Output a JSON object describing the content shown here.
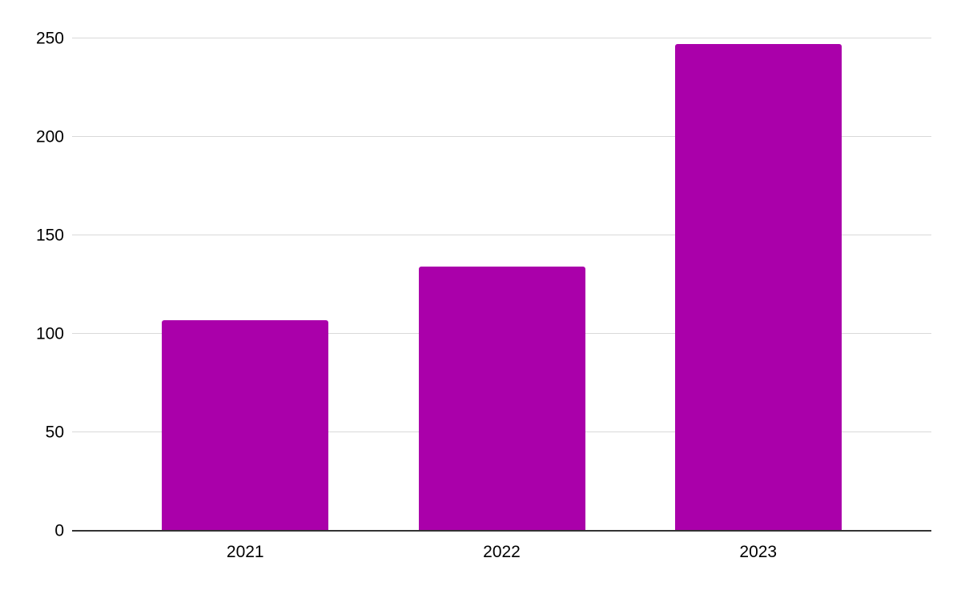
{
  "chart_data": {
    "type": "bar",
    "categories": [
      "2021",
      "2022",
      "2023"
    ],
    "values": [
      107,
      134,
      247
    ],
    "title": "",
    "xlabel": "",
    "ylabel": "",
    "ylim": [
      0,
      250
    ],
    "yticks": [
      0,
      50,
      100,
      150,
      200,
      250
    ],
    "grid": true,
    "legend": "none",
    "bar_color": "#aa00aa"
  },
  "colors": {
    "bar": "#aa00aa",
    "gridline": "#d9d9d9",
    "axis_line": "#333333",
    "label_text": "#000000",
    "background": "#ffffff"
  }
}
